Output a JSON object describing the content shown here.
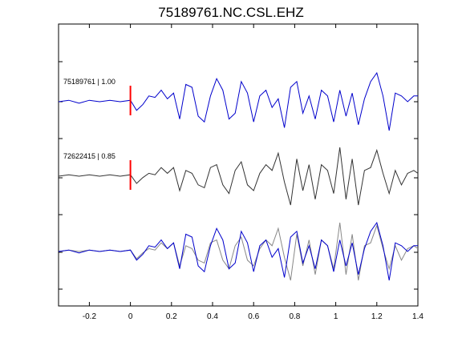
{
  "chart_data": {
    "type": "line",
    "title": "75189761.NC.CSL.EHZ",
    "xlabel": "",
    "ylabel": "",
    "xlim": [
      -0.35,
      1.4
    ],
    "x_ticks": [
      "-0.2",
      "0",
      "0.2",
      "0.4",
      "0.6",
      "0.8",
      "1",
      "1.2",
      "1.4"
    ],
    "x_tick_values": [
      -0.2,
      0,
      0.2,
      0.4,
      0.6,
      0.8,
      1.0,
      1.2,
      1.4
    ],
    "pick_time": 0,
    "pick_color": "#ff0000",
    "traces": [
      {
        "label": "75189761 | 1.00",
        "color": "#0000cc",
        "x": [
          -0.35,
          -0.3,
          -0.25,
          -0.2,
          -0.15,
          -0.1,
          -0.05,
          0,
          0.03,
          0.06,
          0.09,
          0.12,
          0.15,
          0.18,
          0.21,
          0.24,
          0.27,
          0.3,
          0.33,
          0.36,
          0.39,
          0.42,
          0.45,
          0.48,
          0.51,
          0.54,
          0.57,
          0.6,
          0.63,
          0.66,
          0.69,
          0.72,
          0.75,
          0.78,
          0.81,
          0.84,
          0.87,
          0.9,
          0.93,
          0.96,
          0.99,
          1.02,
          1.05,
          1.08,
          1.11,
          1.14,
          1.17,
          1.2,
          1.23,
          1.26,
          1.29,
          1.32,
          1.35,
          1.38,
          1.4
        ],
        "y": [
          0,
          0.05,
          -0.05,
          0.05,
          0,
          0.05,
          0,
          0.05,
          -0.3,
          -0.1,
          0.2,
          0.15,
          0.4,
          0.1,
          0.3,
          -0.6,
          0.6,
          0.5,
          -0.5,
          -0.7,
          0.2,
          0.8,
          0.4,
          -0.6,
          -0.4,
          0.7,
          0.3,
          -0.7,
          0.2,
          0.4,
          -0.2,
          0.1,
          -0.9,
          0.5,
          0.7,
          -0.4,
          0.2,
          -0.6,
          0.4,
          0.2,
          -0.7,
          0.4,
          -0.5,
          0.3,
          -0.8,
          0.1,
          0.7,
          1.0,
          0.2,
          -1.0,
          0.3,
          0.2,
          0,
          0.2,
          0.2
        ]
      },
      {
        "label": "72622415 | 0.85",
        "color": "#333333",
        "x": [
          -0.35,
          -0.3,
          -0.25,
          -0.2,
          -0.15,
          -0.1,
          -0.05,
          0,
          0.03,
          0.06,
          0.09,
          0.12,
          0.15,
          0.18,
          0.21,
          0.24,
          0.27,
          0.3,
          0.33,
          0.36,
          0.39,
          0.42,
          0.45,
          0.48,
          0.51,
          0.54,
          0.57,
          0.6,
          0.63,
          0.66,
          0.69,
          0.72,
          0.75,
          0.78,
          0.81,
          0.84,
          0.87,
          0.9,
          0.93,
          0.96,
          0.99,
          1.02,
          1.05,
          1.08,
          1.11,
          1.14,
          1.17,
          1.2,
          1.23,
          1.26,
          1.29,
          1.32,
          1.35,
          1.38,
          1.4
        ],
        "y": [
          0,
          0.05,
          0,
          0.05,
          0,
          0.05,
          0,
          0.05,
          -0.25,
          -0.05,
          0.1,
          0.05,
          0.3,
          0.1,
          0.3,
          -0.5,
          0.2,
          0.1,
          -0.3,
          -0.4,
          0.3,
          0.4,
          -0.3,
          -0.6,
          0.2,
          0.5,
          -0.3,
          -0.5,
          0.1,
          0.4,
          0.2,
          0.8,
          -0.2,
          -1.0,
          0.6,
          -0.5,
          0.4,
          -0.8,
          0.4,
          0.2,
          -0.6,
          1.0,
          -0.8,
          0.6,
          -1.0,
          0.2,
          0.3,
          0.9,
          0.1,
          -0.6,
          0.2,
          -0.3,
          0.1,
          0.2,
          0.1
        ]
      }
    ]
  }
}
